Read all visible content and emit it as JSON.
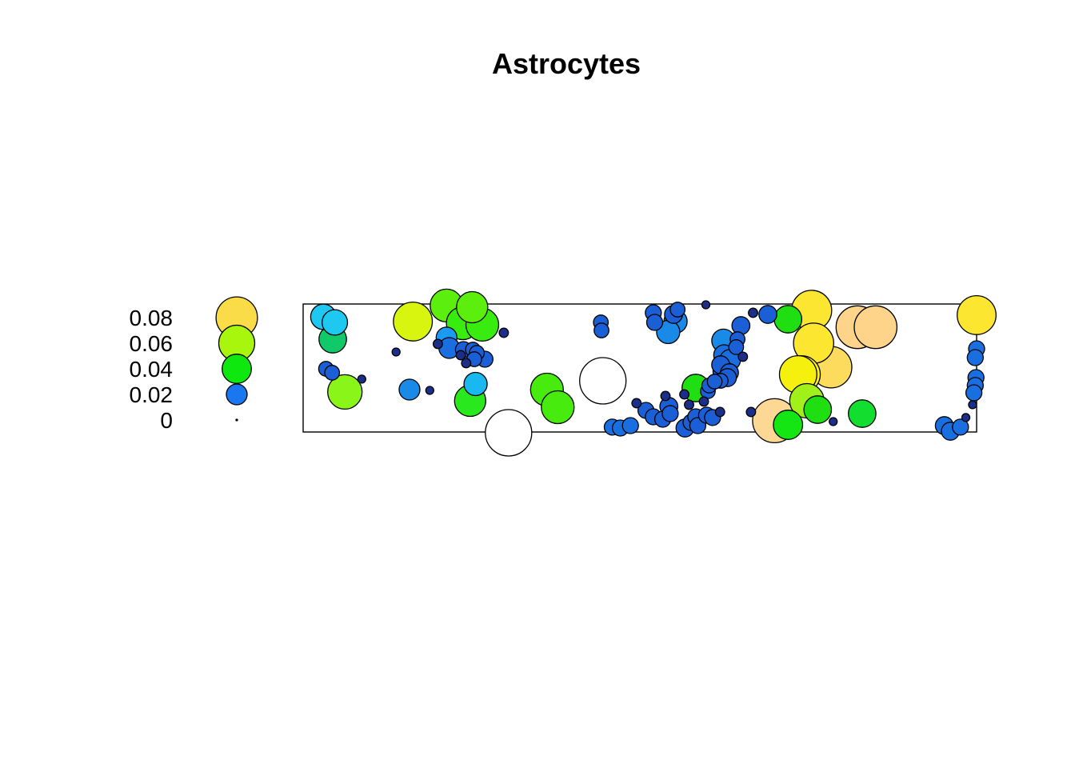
{
  "chart_data": {
    "type": "scatter",
    "title": "Astrocytes",
    "legend": {
      "placement": "left",
      "entries": [
        {
          "label": "0.08",
          "value": 0.08,
          "color": "#f9dc47"
        },
        {
          "label": "0.06",
          "value": 0.06,
          "color": "#a8f50d"
        },
        {
          "label": "0.04",
          "value": 0.04,
          "color": "#0ee80e"
        },
        {
          "label": "0.02",
          "value": 0.02,
          "color": "#1a77f0"
        },
        {
          "label": "0",
          "value": 0.0,
          "color": "#1b2f8a"
        }
      ]
    },
    "xlim": [
      0,
      100
    ],
    "ylim": [
      0,
      100
    ],
    "points": [
      {
        "x": 3.0,
        "y": 90.0,
        "v": 0.03,
        "c": "#1ec8f0"
      },
      {
        "x": 4.7,
        "y": 85.6,
        "v": 0.03,
        "c": "#1ec8f0"
      },
      {
        "x": 4.4,
        "y": 72.5,
        "v": 0.035,
        "c": "#12c96a"
      },
      {
        "x": 3.4,
        "y": 49.4,
        "v": 0.01,
        "c": "#1a5fd6"
      },
      {
        "x": 4.3,
        "y": 46.3,
        "v": 0.01,
        "c": "#1a5fd6"
      },
      {
        "x": 6.2,
        "y": 31.3,
        "v": 0.055,
        "c": "#8af518"
      },
      {
        "x": 16.3,
        "y": 86.3,
        "v": 0.07,
        "c": "#d8f510"
      },
      {
        "x": 21.3,
        "y": 98.8,
        "v": 0.05,
        "c": "#5cef0e"
      },
      {
        "x": 25.1,
        "y": 97.5,
        "v": 0.045,
        "c": "#5cef0e"
      },
      {
        "x": 23.7,
        "y": 85.0,
        "v": 0.05,
        "c": "#37ec0e"
      },
      {
        "x": 26.6,
        "y": 83.8,
        "v": 0.05,
        "c": "#37ec0e"
      },
      {
        "x": 21.3,
        "y": 73.8,
        "v": 0.02,
        "c": "#1a9af0"
      },
      {
        "x": 21.7,
        "y": 65.6,
        "v": 0.02,
        "c": "#1a6fe0"
      },
      {
        "x": 23.8,
        "y": 64.4,
        "v": 0.012,
        "c": "#1a5fd6"
      },
      {
        "x": 25.2,
        "y": 64.4,
        "v": 0.01,
        "c": "#1a5fd6"
      },
      {
        "x": 25.8,
        "y": 61.9,
        "v": 0.01,
        "c": "#1a5fd6"
      },
      {
        "x": 25.4,
        "y": 56.9,
        "v": 0.01,
        "c": "#1a5fd6"
      },
      {
        "x": 27.0,
        "y": 56.9,
        "v": 0.012,
        "c": "#1a5fd6"
      },
      {
        "x": 25.6,
        "y": 37.5,
        "v": 0.025,
        "c": "#1ab8f0"
      },
      {
        "x": 24.8,
        "y": 24.4,
        "v": 0.045,
        "c": "#2ae81e"
      },
      {
        "x": 15.8,
        "y": 33.1,
        "v": 0.02,
        "c": "#1a8ae8"
      },
      {
        "x": 36.2,
        "y": 33.1,
        "v": 0.05,
        "c": "#47ec0e"
      },
      {
        "x": 37.8,
        "y": 19.4,
        "v": 0.05,
        "c": "#47ec0e"
      },
      {
        "x": 30.5,
        "y": -0.6,
        "v": 0.1,
        "c": "#ffffff"
      },
      {
        "x": 44.5,
        "y": 40.0,
        "v": 0.1,
        "c": "#ffffff"
      },
      {
        "x": 44.2,
        "y": 85.6,
        "v": 0.01,
        "c": "#1a5fd6"
      },
      {
        "x": 44.3,
        "y": 79.4,
        "v": 0.01,
        "c": "#1a5fd6"
      },
      {
        "x": 52.0,
        "y": 93.1,
        "v": 0.012,
        "c": "#1a5fd6"
      },
      {
        "x": 52.2,
        "y": 85.6,
        "v": 0.012,
        "c": "#1a5fd6"
      },
      {
        "x": 55.0,
        "y": 91.9,
        "v": 0.015,
        "c": "#1a5fd6"
      },
      {
        "x": 55.6,
        "y": 95.6,
        "v": 0.01,
        "c": "#1a5fd6"
      },
      {
        "x": 55.3,
        "y": 86.3,
        "v": 0.025,
        "c": "#1a8ae8"
      },
      {
        "x": 54.2,
        "y": 78.1,
        "v": 0.025,
        "c": "#1a8ae8"
      },
      {
        "x": 58.3,
        "y": 34.4,
        "v": 0.035,
        "c": "#1fde12"
      },
      {
        "x": 62.4,
        "y": 71.3,
        "v": 0.025,
        "c": "#1a8ae8"
      },
      {
        "x": 62.5,
        "y": 60.0,
        "v": 0.02,
        "c": "#1a6fe0"
      },
      {
        "x": 63.4,
        "y": 56.3,
        "v": 0.02,
        "c": "#1a6fe0"
      },
      {
        "x": 62.0,
        "y": 52.5,
        "v": 0.015,
        "c": "#1a5fd6"
      },
      {
        "x": 62.4,
        "y": 47.5,
        "v": 0.02,
        "c": "#1a5fd6"
      },
      {
        "x": 63.3,
        "y": 46.3,
        "v": 0.015,
        "c": "#1a5fd6"
      },
      {
        "x": 63.0,
        "y": 42.5,
        "v": 0.015,
        "c": "#1a5fd6"
      },
      {
        "x": 62.0,
        "y": 40.0,
        "v": 0.01,
        "c": "#1a5fd6"
      },
      {
        "x": 64.5,
        "y": 72.5,
        "v": 0.01,
        "c": "#1a5fd6"
      },
      {
        "x": 64.3,
        "y": 66.3,
        "v": 0.01,
        "c": "#1a5fd6"
      },
      {
        "x": 65.0,
        "y": 83.1,
        "v": 0.015,
        "c": "#1a5fd6"
      },
      {
        "x": 69.0,
        "y": 91.9,
        "v": 0.015,
        "c": "#1a5fd6"
      },
      {
        "x": 72.0,
        "y": 88.1,
        "v": 0.035,
        "c": "#1fde12"
      },
      {
        "x": 75.5,
        "y": 95.0,
        "v": 0.075,
        "c": "#fce630"
      },
      {
        "x": 75.8,
        "y": 69.4,
        "v": 0.075,
        "c": "#fce630"
      },
      {
        "x": 74.0,
        "y": 45.0,
        "v": 0.065,
        "c": "#fff024"
      },
      {
        "x": 73.5,
        "y": 45.0,
        "v": 0.065,
        "c": "#f5f00e"
      },
      {
        "x": 78.4,
        "y": 50.6,
        "v": 0.08,
        "c": "#fddb5c"
      },
      {
        "x": 70.0,
        "y": 8.8,
        "v": 0.09,
        "c": "#fdd894"
      },
      {
        "x": 82.3,
        "y": 81.9,
        "v": 0.085,
        "c": "#fdd48a"
      },
      {
        "x": 85.0,
        "y": 81.9,
        "v": 0.085,
        "c": "#fdd48a"
      },
      {
        "x": 74.8,
        "y": 24.4,
        "v": 0.055,
        "c": "#a1f01a"
      },
      {
        "x": 76.4,
        "y": 17.5,
        "v": 0.035,
        "c": "#1fde12"
      },
      {
        "x": 72.0,
        "y": 5.6,
        "v": 0.04,
        "c": "#14e614"
      },
      {
        "x": 83.0,
        "y": 14.4,
        "v": 0.035,
        "c": "#12de30"
      },
      {
        "x": 100.0,
        "y": 91.3,
        "v": 0.07,
        "c": "#fce630"
      },
      {
        "x": 100.0,
        "y": 65.0,
        "v": 0.012,
        "c": "#1a6fe0"
      },
      {
        "x": 99.8,
        "y": 58.1,
        "v": 0.012,
        "c": "#1a6fe0"
      },
      {
        "x": 99.9,
        "y": 42.5,
        "v": 0.012,
        "c": "#1a6fe0"
      },
      {
        "x": 99.8,
        "y": 36.3,
        "v": 0.012,
        "c": "#1a6fe0"
      },
      {
        "x": 99.6,
        "y": 30.6,
        "v": 0.012,
        "c": "#1a6fe0"
      },
      {
        "x": 95.2,
        "y": 5.0,
        "v": 0.015,
        "c": "#1a6fe0"
      },
      {
        "x": 96.1,
        "y": 0.6,
        "v": 0.015,
        "c": "#1a6fe0"
      },
      {
        "x": 97.6,
        "y": 3.8,
        "v": 0.012,
        "c": "#1a6fe0"
      },
      {
        "x": 45.9,
        "y": 3.8,
        "v": 0.012,
        "c": "#1a6fe0"
      },
      {
        "x": 47.1,
        "y": 3.1,
        "v": 0.012,
        "c": "#1a6fe0"
      },
      {
        "x": 48.6,
        "y": 5.0,
        "v": 0.012,
        "c": "#1a6fe0"
      },
      {
        "x": 50.9,
        "y": 16.9,
        "v": 0.012,
        "c": "#1a5fd6"
      },
      {
        "x": 52.0,
        "y": 11.9,
        "v": 0.012,
        "c": "#1a5fd6"
      },
      {
        "x": 53.4,
        "y": 10.0,
        "v": 0.012,
        "c": "#1a5fd6"
      },
      {
        "x": 54.3,
        "y": 20.0,
        "v": 0.015,
        "c": "#1a5fd6"
      },
      {
        "x": 54.5,
        "y": 14.4,
        "v": 0.012,
        "c": "#1a5fd6"
      },
      {
        "x": 56.7,
        "y": 3.1,
        "v": 0.015,
        "c": "#1a5fd6"
      },
      {
        "x": 57.6,
        "y": 7.5,
        "v": 0.012,
        "c": "#1a5fd6"
      },
      {
        "x": 58.3,
        "y": 11.9,
        "v": 0.012,
        "c": "#1a5fd6"
      },
      {
        "x": 58.6,
        "y": 5.0,
        "v": 0.012,
        "c": "#1a5fd6"
      },
      {
        "x": 59.9,
        "y": 13.1,
        "v": 0.012,
        "c": "#1a5fd6"
      },
      {
        "x": 60.8,
        "y": 11.3,
        "v": 0.012,
        "c": "#1a5fd6"
      },
      {
        "x": 60.1,
        "y": 31.9,
        "v": 0.01,
        "c": "#1a5fd6"
      },
      {
        "x": 60.3,
        "y": 36.3,
        "v": 0.01,
        "c": "#1a5fd6"
      },
      {
        "x": 61.1,
        "y": 39.4,
        "v": 0.01,
        "c": "#1a5fd6"
      },
      {
        "x": 29.8,
        "y": 77.5,
        "v": 0.004,
        "c": "#1b2f8a"
      },
      {
        "x": 8.7,
        "y": 41.3,
        "v": 0.003,
        "c": "#1b2f8a"
      },
      {
        "x": 13.8,
        "y": 62.5,
        "v": 0.003,
        "c": "#1b2f8a"
      },
      {
        "x": 18.8,
        "y": 32.5,
        "v": 0.003,
        "c": "#1b2f8a"
      },
      {
        "x": 49.5,
        "y": 22.5,
        "v": 0.004,
        "c": "#1b2f8a"
      },
      {
        "x": 53.8,
        "y": 28.1,
        "v": 0.004,
        "c": "#1b2f8a"
      },
      {
        "x": 56.6,
        "y": 29.4,
        "v": 0.004,
        "c": "#1b2f8a"
      },
      {
        "x": 57.3,
        "y": 21.3,
        "v": 0.004,
        "c": "#1b2f8a"
      },
      {
        "x": 59.5,
        "y": 23.8,
        "v": 0.004,
        "c": "#1b2f8a"
      },
      {
        "x": 61.9,
        "y": 15.6,
        "v": 0.004,
        "c": "#1b2f8a"
      },
      {
        "x": 65.3,
        "y": 58.8,
        "v": 0.004,
        "c": "#1b2f8a"
      },
      {
        "x": 66.8,
        "y": 93.1,
        "v": 0.004,
        "c": "#1b2f8a"
      },
      {
        "x": 59.8,
        "y": 99.4,
        "v": 0.003,
        "c": "#1b2f8a"
      },
      {
        "x": 66.5,
        "y": 15.6,
        "v": 0.004,
        "c": "#1b2f8a"
      },
      {
        "x": 78.7,
        "y": 8.1,
        "v": 0.003,
        "c": "#1b2f8a"
      },
      {
        "x": 99.4,
        "y": 21.3,
        "v": 0.003,
        "c": "#1b2f8a"
      },
      {
        "x": 98.4,
        "y": 11.3,
        "v": 0.003,
        "c": "#1b2f8a"
      },
      {
        "x": 20.0,
        "y": 68.8,
        "v": 0.004,
        "c": "#1b2f8a"
      },
      {
        "x": 24.2,
        "y": 53.8,
        "v": 0.004,
        "c": "#1b2f8a"
      },
      {
        "x": 23.4,
        "y": 60.0,
        "v": 0.004,
        "c": "#1b2f8a"
      }
    ]
  }
}
